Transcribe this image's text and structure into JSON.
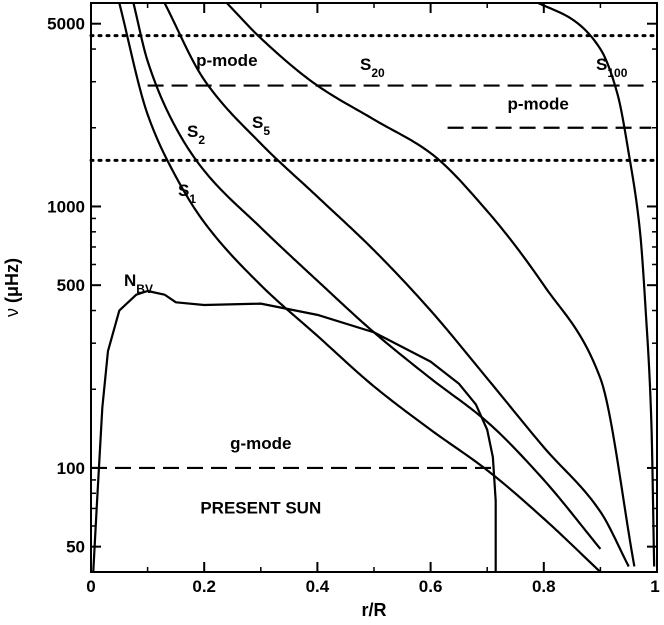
{
  "chart_data": {
    "type": "line",
    "title": "",
    "xlabel": "r/R",
    "ylabel_symbol": "ν",
    "ylabel_unit": "(μHz)",
    "xlim": [
      0,
      1
    ],
    "ylim": [
      40,
      6000
    ],
    "y_scale": "log",
    "grid": false,
    "legend": "none",
    "x_ticks": [
      {
        "value": 0,
        "label": "0"
      },
      {
        "value": 0.2,
        "label": "0.2"
      },
      {
        "value": 0.4,
        "label": "0.4"
      },
      {
        "value": 0.6,
        "label": "0.6"
      },
      {
        "value": 0.8,
        "label": "0.8"
      },
      {
        "value": 1,
        "label": "1"
      }
    ],
    "y_major_ticks": [
      {
        "value": 50,
        "label": "50"
      },
      {
        "value": 100,
        "label": "100"
      },
      {
        "value": 500,
        "label": "500"
      },
      {
        "value": 1000,
        "label": "1000"
      },
      {
        "value": 5000,
        "label": "5000"
      }
    ],
    "y_minor_ticks": [
      60,
      70,
      80,
      90,
      200,
      300,
      400,
      600,
      700,
      800,
      900,
      2000,
      3000,
      4000
    ],
    "series": [
      {
        "label": "S",
        "subscript": "1",
        "style": "solid",
        "x": [
          0.05,
          0.1,
          0.15,
          0.2,
          0.3,
          0.4,
          0.5,
          0.6,
          0.7,
          0.8,
          0.9
        ],
        "y": [
          6000,
          2250,
          1300,
          870,
          500,
          320,
          205,
          140,
          98,
          64,
          40
        ]
      },
      {
        "label": "S",
        "subscript": "2",
        "style": "solid",
        "x": [
          0.075,
          0.1,
          0.15,
          0.2,
          0.3,
          0.4,
          0.5,
          0.6,
          0.7,
          0.8,
          0.9
        ],
        "y": [
          6000,
          3600,
          2000,
          1370,
          830,
          520,
          330,
          220,
          150,
          90,
          49
        ]
      },
      {
        "label": "S",
        "subscript": "5",
        "style": "solid",
        "x": [
          0.13,
          0.2,
          0.3,
          0.4,
          0.5,
          0.6,
          0.7,
          0.8,
          0.9,
          0.95
        ],
        "y": [
          6000,
          3050,
          1740,
          1090,
          680,
          400,
          220,
          120,
          68,
          42
        ]
      },
      {
        "label": "S",
        "subscript": "20",
        "style": "solid",
        "x": [
          0.24,
          0.3,
          0.4,
          0.5,
          0.6,
          0.7,
          0.8,
          0.9,
          0.96
        ],
        "y": [
          6000,
          4400,
          2900,
          2150,
          1600,
          960,
          500,
          220,
          42
        ]
      },
      {
        "label": "S",
        "subscript": "100",
        "style": "solid",
        "x": [
          0.79,
          0.85,
          0.9,
          0.93,
          0.95,
          0.97,
          0.98,
          0.99,
          0.995
        ],
        "y": [
          6000,
          5200,
          4000,
          2700,
          1600,
          800,
          400,
          150,
          42
        ]
      },
      {
        "label": "N",
        "subscript": "BV",
        "style": "solid",
        "x": [
          0.004,
          0.01,
          0.02,
          0.03,
          0.05,
          0.08,
          0.1,
          0.13,
          0.15,
          0.2,
          0.3,
          0.4,
          0.5,
          0.6,
          0.65,
          0.68,
          0.7,
          0.71,
          0.715,
          0.715
        ],
        "y": [
          40,
          70,
          170,
          280,
          400,
          460,
          475,
          460,
          430,
          420,
          425,
          385,
          330,
          255,
          210,
          175,
          140,
          110,
          75,
          40
        ]
      }
    ],
    "reference_lines": [
      {
        "style": "dotted",
        "y": 4500,
        "x": [
          0,
          1
        ]
      },
      {
        "style": "dotted",
        "y": 1500,
        "x": [
          0,
          1
        ]
      },
      {
        "style": "dashed",
        "y": 2900,
        "x": [
          0.1,
          0.99
        ]
      },
      {
        "style": "dashed",
        "y": 2000,
        "x": [
          0.63,
          0.99
        ]
      },
      {
        "style": "dashed",
        "y": 100,
        "x": [
          0,
          0.72
        ]
      }
    ],
    "annotations": [
      {
        "text": "p-mode",
        "x": 0.24,
        "y": 3450
      },
      {
        "text": "p-mode",
        "x": 0.79,
        "y": 2350
      },
      {
        "text": "g-mode",
        "x": 0.3,
        "y": 118
      },
      {
        "text": "PRESENT SUN",
        "x": 0.3,
        "y": 67
      }
    ]
  }
}
